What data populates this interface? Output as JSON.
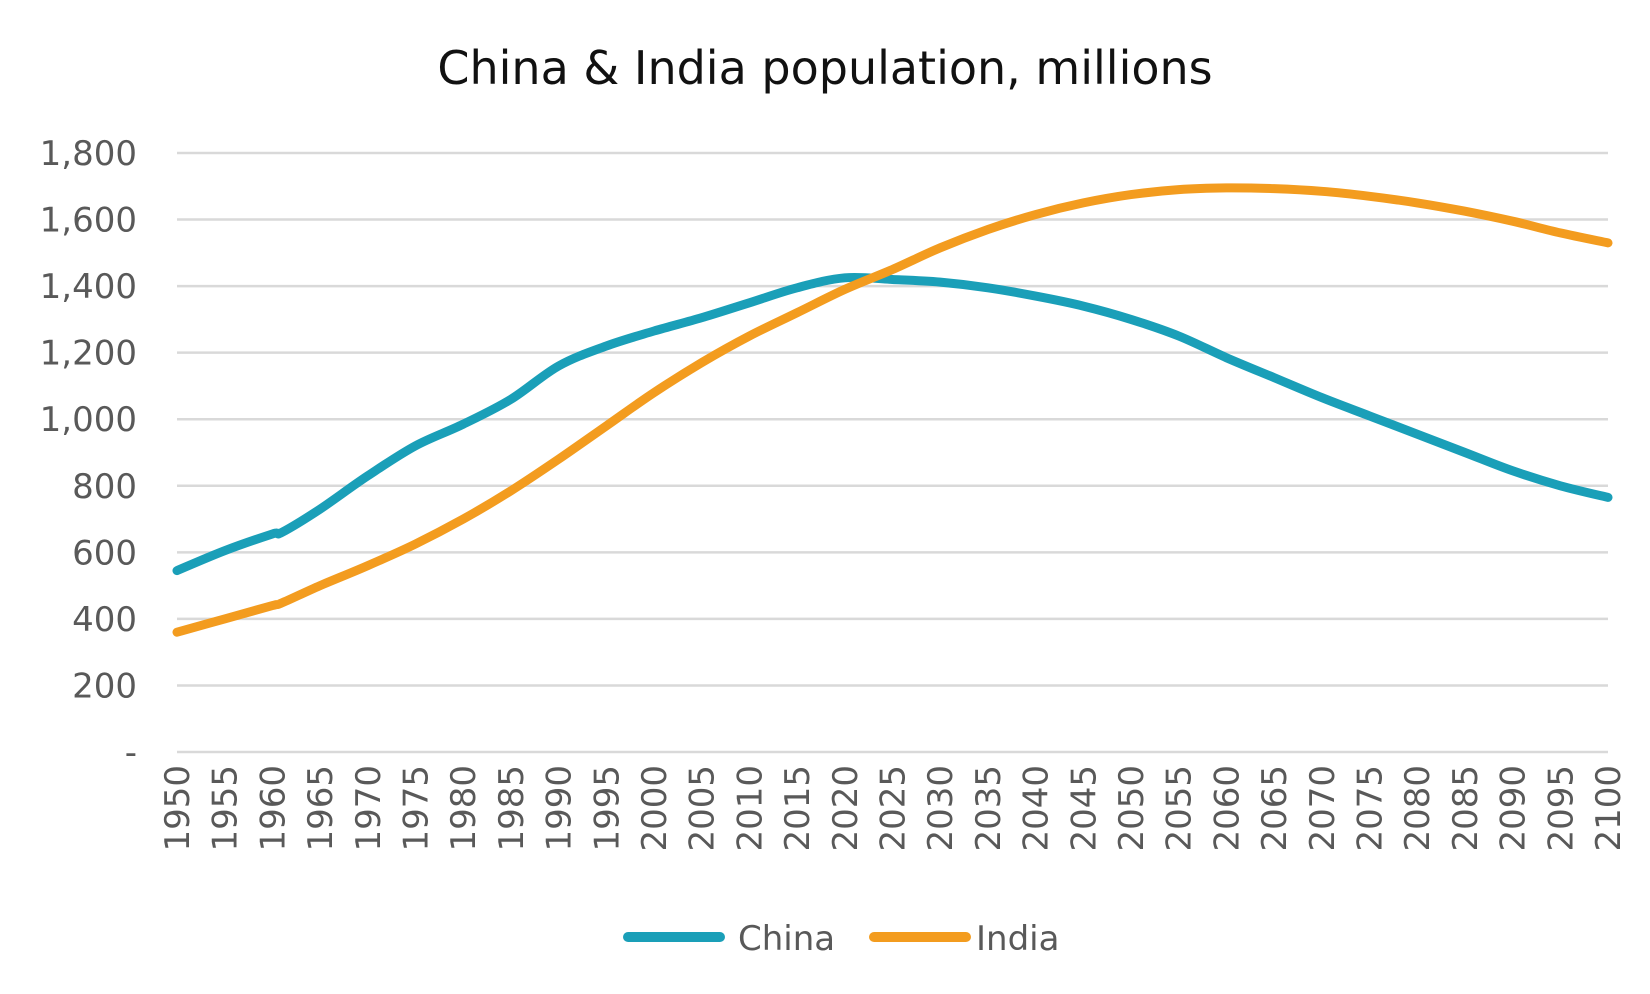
{
  "chart_data": {
    "type": "line",
    "title": "China & India population, millions",
    "xlabel": "",
    "ylabel": "",
    "grid": true,
    "legend_position": "bottom",
    "x": [
      1950,
      1955,
      1960,
      1961,
      1965,
      1970,
      1975,
      1980,
      1985,
      1990,
      1995,
      2000,
      2005,
      2010,
      2015,
      2020,
      2025,
      2030,
      2035,
      2040,
      2045,
      2050,
      2055,
      2060,
      2065,
      2070,
      2075,
      2080,
      2085,
      2090,
      2095,
      2100
    ],
    "xticks": [
      "1950",
      "1955",
      "1960",
      "1965",
      "1970",
      "1975",
      "1980",
      "1985",
      "1990",
      "1995",
      "2000",
      "2005",
      "2010",
      "2015",
      "2020",
      "2025",
      "2030",
      "2035",
      "2040",
      "2045",
      "2050",
      "2055",
      "2060",
      "2065",
      "2070",
      "2075",
      "2080",
      "2085",
      "2090",
      "2095",
      "2100"
    ],
    "ylim": [
      0,
      1800
    ],
    "yticks": [
      {
        "value": 0,
        "label": "-"
      },
      {
        "value": 200,
        "label": "200"
      },
      {
        "value": 400,
        "label": "400"
      },
      {
        "value": 600,
        "label": "600"
      },
      {
        "value": 800,
        "label": "800"
      },
      {
        "value": 1000,
        "label": "1,000"
      },
      {
        "value": 1200,
        "label": "1,200"
      },
      {
        "value": 1400,
        "label": "1,400"
      },
      {
        "value": 1600,
        "label": "1,600"
      },
      {
        "value": 1800,
        "label": "1,800"
      }
    ],
    "series": [
      {
        "name": "China",
        "color": "#1a9fb8",
        "values": [
          545,
          605,
          655,
          660,
          730,
          830,
          920,
          985,
          1060,
          1160,
          1220,
          1265,
          1305,
          1350,
          1395,
          1425,
          1420,
          1412,
          1395,
          1370,
          1340,
          1300,
          1250,
          1185,
          1125,
          1065,
          1010,
          955,
          900,
          845,
          800,
          765
        ]
      },
      {
        "name": "India",
        "color": "#f39c1f",
        "values": [
          360,
          400,
          440,
          448,
          500,
          560,
          625,
          700,
          785,
          880,
          980,
          1080,
          1170,
          1250,
          1320,
          1390,
          1450,
          1515,
          1570,
          1615,
          1650,
          1675,
          1690,
          1695,
          1693,
          1685,
          1670,
          1650,
          1625,
          1595,
          1560,
          1530
        ]
      }
    ]
  }
}
